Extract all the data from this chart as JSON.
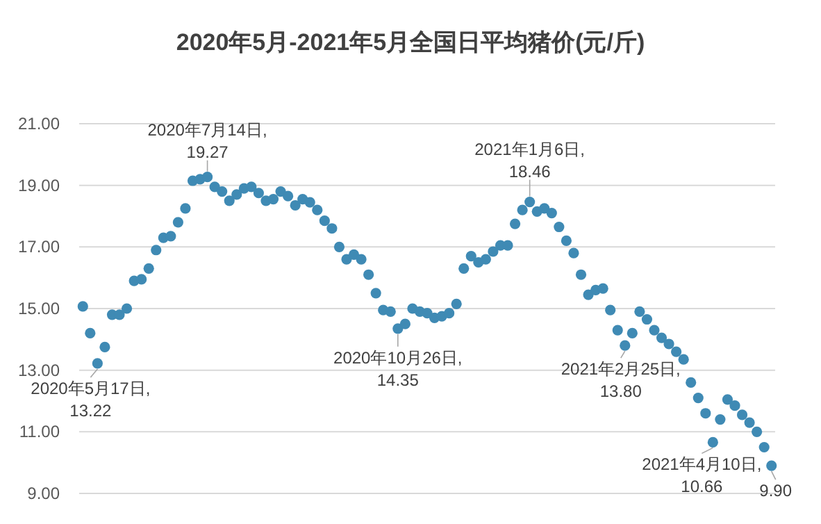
{
  "chart_data": {
    "type": "scatter",
    "title": "2020年5月-2021年5月全国日平均猪价(元/斤)",
    "categories": [
      null,
      null,
      null,
      null,
      null,
      null,
      null,
      null,
      null,
      null,
      null,
      null,
      null,
      null,
      null,
      null,
      null,
      null,
      null,
      null,
      null,
      null,
      null,
      null,
      null,
      null,
      null,
      null,
      null,
      null,
      null,
      null,
      null,
      null,
      null,
      null,
      null,
      null,
      null,
      null,
      null,
      null,
      null,
      null,
      null,
      null,
      null,
      null,
      null,
      null,
      null,
      null,
      null,
      null,
      null,
      null,
      null,
      null,
      null,
      null,
      null,
      null,
      null,
      null,
      null,
      null,
      null,
      null,
      null,
      null,
      null,
      null,
      null,
      null,
      null,
      null,
      null,
      null,
      null,
      null,
      null,
      null,
      null,
      null,
      null,
      null,
      null,
      null,
      null,
      null,
      null,
      null,
      null,
      null,
      null
    ],
    "series": [
      {
        "color": "#3f8ab4",
        "values": [
          15.07,
          14.2,
          13.22,
          13.75,
          14.8,
          14.8,
          15.0,
          15.9,
          15.95,
          16.3,
          16.9,
          17.3,
          17.35,
          17.8,
          18.25,
          19.15,
          19.2,
          19.27,
          18.95,
          18.8,
          18.5,
          18.7,
          18.9,
          18.95,
          18.75,
          18.5,
          18.55,
          18.8,
          18.65,
          18.35,
          18.55,
          18.45,
          18.2,
          17.85,
          17.6,
          17.0,
          16.6,
          16.75,
          16.6,
          16.1,
          15.5,
          14.95,
          14.9,
          14.35,
          14.5,
          15.0,
          14.9,
          14.85,
          14.7,
          14.75,
          14.85,
          15.15,
          16.3,
          16.7,
          16.5,
          16.6,
          16.85,
          17.05,
          17.05,
          17.75,
          18.2,
          18.46,
          18.15,
          18.25,
          18.1,
          17.65,
          17.2,
          16.8,
          16.1,
          15.45,
          15.6,
          15.65,
          14.95,
          14.3,
          13.8,
          14.2,
          14.9,
          14.65,
          14.3,
          14.05,
          13.85,
          13.6,
          13.35,
          12.6,
          12.1,
          11.6,
          10.66,
          11.4,
          12.05,
          11.85,
          11.55,
          11.3,
          11.0,
          10.5,
          9.9
        ]
      }
    ],
    "ylim": [
      9,
      21
    ],
    "yticks": [
      {
        "value": 9,
        "label": "9.00"
      },
      {
        "value": 11,
        "label": "11.00"
      },
      {
        "value": 13,
        "label": "13.00"
      },
      {
        "value": 15,
        "label": "15.00"
      },
      {
        "value": 17,
        "label": "17.00"
      },
      {
        "value": 19,
        "label": "19.00"
      },
      {
        "value": 21,
        "label": "21.00"
      }
    ],
    "grid": "y",
    "tick_labels": "y",
    "marker": "circle",
    "annotations": [
      {
        "text": "2020年5月17日, 13.22",
        "y": 13.22
      },
      {
        "text": "2020年7月14日, 19.27",
        "y": 19.27
      },
      {
        "text": "2020年10月26日, 14.35",
        "y": 14.35
      },
      {
        "text": "2021年1月6日, 18.46",
        "y": 18.46
      },
      {
        "text": "2021年2月25日, 13.80",
        "y": 13.8
      },
      {
        "text": "2021年4月10日, 10.66",
        "y": 10.66
      },
      {
        "text": "9.90",
        "y": 9.9
      }
    ]
  }
}
